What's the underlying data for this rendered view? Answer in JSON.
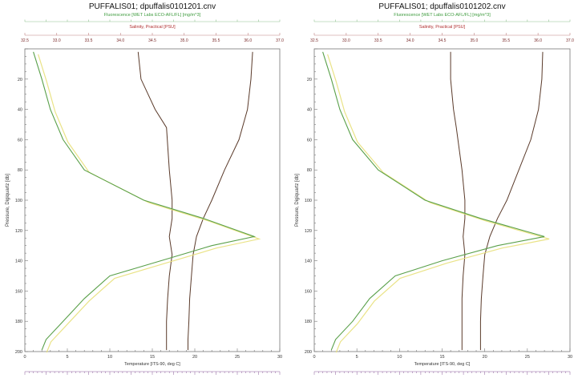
{
  "charts": [
    {
      "title": "PUFFALIS01; dpuffalis0101201.cnv",
      "top_axis_label_1": "Fluorescence [WET Labs ECO-AFL/FL] [mg/m^3]",
      "top_axis_label_2": "Salinity, Practical [PSU]",
      "y_label": "Pressure, Digiquartz [db]",
      "x_label": "Temperature [ITS-90, deg C]",
      "y_ticks": [
        "20",
        "40",
        "60",
        "80",
        "100",
        "120",
        "140",
        "160",
        "180",
        "200"
      ],
      "x_ticks": [
        "0",
        "5",
        "10",
        "15",
        "20",
        "25",
        "30"
      ],
      "salinity_ticks": [
        "32.5",
        "33.0",
        "33.5",
        "34.0",
        "34.5",
        "35.0",
        "35.5",
        "36.0",
        "37.0"
      ]
    },
    {
      "title": "PUFFALIS01; dpuffalis0101202.cnv",
      "top_axis_label_1": "Fluorescence [WET Labs ECO-AFL/FL] [mg/m^3]",
      "top_axis_label_2": "Salinity, Practical [PSU]",
      "y_label": "Pressure, Digiquartz [db]",
      "x_label": "Temperature [ITS-90, deg C]",
      "y_ticks": [
        "20",
        "40",
        "60",
        "80",
        "100",
        "120",
        "140",
        "160",
        "180",
        "200"
      ],
      "x_ticks": [
        "0",
        "5",
        "10",
        "15",
        "20",
        "25",
        "30"
      ],
      "salinity_ticks": [
        "32.5",
        "33.0",
        "33.5",
        "34.0",
        "34.5",
        "35.0",
        "35.5",
        "36.0",
        "37.0"
      ]
    }
  ],
  "colors": {
    "temperature": "#5a3a2a",
    "salinity": "#5a3a2a",
    "fluorescence": "#5aa04a",
    "fluorescence_light": "#e8e07a",
    "title_fluor": "#3c9a3c",
    "title_sal": "#b03030"
  },
  "chart_data": [
    {
      "type": "line",
      "title": "PUFFALIS01; dpuffalis0101201.cnv",
      "ylabel": "Pressure, Digiquartz [db]",
      "xlabel": "Temperature [ITS-90, deg C]",
      "ylim": [
        0,
        200
      ],
      "xlim": [
        0,
        30
      ],
      "y_inverted": true,
      "series": [
        {
          "name": "Temperature [ITS-90, deg C]",
          "axis": "bottom",
          "x": [
            26.8,
            26.6,
            26.2,
            25.2,
            23.5,
            22.0,
            21.0,
            20.2,
            19.8,
            19.6,
            19.4,
            19.3,
            19.2,
            19.2
          ],
          "y": [
            2,
            20,
            40,
            60,
            80,
            100,
            112,
            124,
            136,
            150,
            165,
            180,
            192,
            199
          ]
        },
        {
          "name": "Salinity, Practical [PSU]",
          "axis": "top_salinity",
          "x": [
            34.5,
            34.55,
            34.8,
            35.0,
            35.05,
            35.1,
            35.1,
            35.05,
            35.1,
            35.05,
            35.02,
            35.0,
            35.0,
            35.0
          ],
          "y": [
            2,
            20,
            40,
            52,
            80,
            100,
            112,
            124,
            136,
            150,
            165,
            180,
            192,
            199
          ]
        },
        {
          "name": "Fluorescence [WET Labs ECO-AFL/FL] [mg/m^3]",
          "axis": "top_fluorescence",
          "x": [
            0.2,
            0.4,
            0.6,
            0.9,
            1.4,
            2.8,
            4.2,
            5.4,
            4.4,
            3.2,
            2.0,
            1.4,
            0.9,
            0.5,
            0.4
          ],
          "y": [
            2,
            20,
            40,
            60,
            80,
            100,
            112,
            124,
            130,
            140,
            150,
            165,
            180,
            192,
            199
          ]
        }
      ]
    },
    {
      "type": "line",
      "title": "PUFFALIS01; dpuffalis0101202.cnv",
      "ylabel": "Pressure, Digiquartz [db]",
      "xlabel": "Temperature [ITS-90, deg C]",
      "ylim": [
        0,
        200
      ],
      "xlim": [
        0,
        30
      ],
      "y_inverted": true,
      "series": [
        {
          "name": "Temperature [ITS-90, deg C]",
          "axis": "bottom",
          "x": [
            26.8,
            26.7,
            26.3,
            25.4,
            24.0,
            22.6,
            21.5,
            20.6,
            20.0,
            19.8,
            19.6,
            19.5,
            19.5,
            19.5
          ],
          "y": [
            2,
            20,
            40,
            60,
            80,
            100,
            112,
            124,
            136,
            150,
            165,
            180,
            192,
            199
          ]
        },
        {
          "name": "Salinity, Practical [PSU]",
          "axis": "top_salinity",
          "x": [
            34.9,
            34.9,
            34.95,
            35.0,
            35.1,
            35.15,
            35.15,
            35.12,
            35.15,
            35.12,
            35.1,
            35.1,
            35.1,
            35.1
          ],
          "y": [
            2,
            20,
            40,
            52,
            80,
            100,
            112,
            124,
            136,
            150,
            165,
            180,
            192,
            199
          ]
        },
        {
          "name": "Fluorescence [WET Labs ECO-AFL/FL] [mg/m^3]",
          "axis": "top_fluorescence",
          "x": [
            0.2,
            0.4,
            0.6,
            0.9,
            1.5,
            2.6,
            3.9,
            5.4,
            4.3,
            3.0,
            1.9,
            1.3,
            0.9,
            0.5,
            0.4
          ],
          "y": [
            2,
            20,
            40,
            60,
            80,
            100,
            112,
            124,
            130,
            140,
            150,
            165,
            180,
            192,
            199
          ]
        }
      ]
    }
  ]
}
